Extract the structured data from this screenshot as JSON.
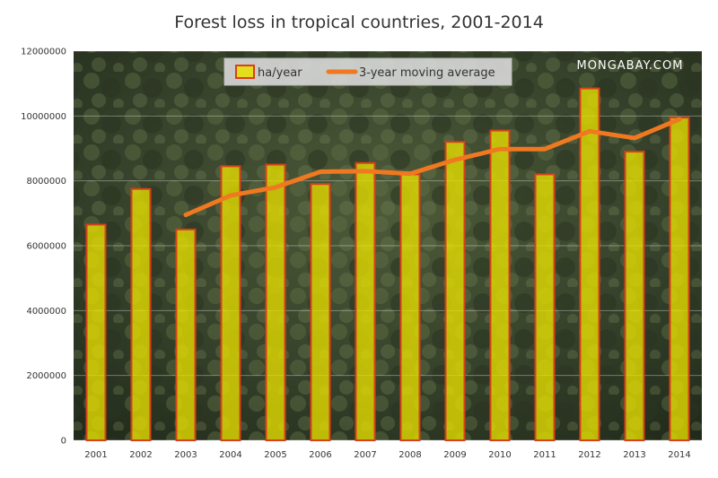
{
  "chart_data": {
    "type": "bar",
    "title": "Forest loss in tropical countries, 2001-2014",
    "categories": [
      "2001",
      "2002",
      "2003",
      "2004",
      "2005",
      "2006",
      "2007",
      "2008",
      "2009",
      "2010",
      "2011",
      "2012",
      "2013",
      "2014"
    ],
    "series": [
      {
        "name": "ha/year",
        "type": "bar",
        "color": "#e8e000",
        "values": [
          6650000,
          7750000,
          6500000,
          8450000,
          8500000,
          7900000,
          8550000,
          8200000,
          9200000,
          9550000,
          8200000,
          10850000,
          8900000,
          9950000
        ]
      },
      {
        "name": "3-year moving average",
        "type": "line",
        "color": "#f07820",
        "values": [
          null,
          null,
          6950000,
          7550000,
          7800000,
          8280000,
          8300000,
          8220000,
          8650000,
          8980000,
          8980000,
          9530000,
          9320000,
          9900000
        ]
      }
    ],
    "ylim": [
      0,
      12000000
    ],
    "yticks": [
      "0",
      "2000000",
      "4000000",
      "6000000",
      "8000000",
      "10000000",
      "12000000"
    ],
    "grid": true,
    "legend": "top"
  },
  "watermark": "MONGABAY.COM",
  "colors": {
    "background_forest": "#2f3a24",
    "bar_outline": "#d8401a"
  }
}
